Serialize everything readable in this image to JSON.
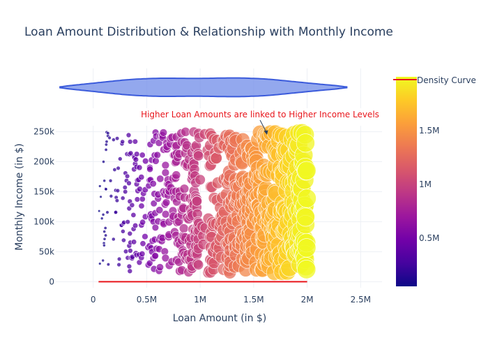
{
  "chart_data": {
    "type": "scatter",
    "title": "Loan Amount Distribution & Relationship with Monthly Income",
    "xlabel": "Loan Amount (in $)",
    "ylabel": "Monthly Income (in $)",
    "xlim": [
      -350000,
      2700000
    ],
    "ylim": [
      -10000,
      260000
    ],
    "x_ticks": [
      {
        "value": 0,
        "label": "0"
      },
      {
        "value": 500000,
        "label": "0.5M"
      },
      {
        "value": 1000000,
        "label": "1M"
      },
      {
        "value": 1500000,
        "label": "1.5M"
      },
      {
        "value": 2000000,
        "label": "2M"
      },
      {
        "value": 2500000,
        "label": "2.5M"
      }
    ],
    "y_ticks": [
      {
        "value": 0,
        "label": "0"
      },
      {
        "value": 50000,
        "label": "50k"
      },
      {
        "value": 100000,
        "label": "100k"
      },
      {
        "value": 150000,
        "label": "150k"
      },
      {
        "value": 200000,
        "label": "200k"
      },
      {
        "value": 250000,
        "label": "250k"
      }
    ],
    "grid": true,
    "colorbar": {
      "min": 50000,
      "max": 2000000,
      "ticks": [
        {
          "value": 500000,
          "label": "0.5M"
        },
        {
          "value": 1000000,
          "label": "1M"
        },
        {
          "value": 1500000,
          "label": "1.5M"
        }
      ],
      "colors": [
        "#0d0887",
        "#46039f",
        "#7201a8",
        "#9c179e",
        "#bd3786",
        "#d8576b",
        "#ed7953",
        "#fb9f3a",
        "#fdca26",
        "#f0f921"
      ]
    },
    "points_sample": [
      {
        "x": 120000,
        "y": 220000
      },
      {
        "x": 300000,
        "y": 150000
      },
      {
        "x": 450000,
        "y": 40000
      },
      {
        "x": 650000,
        "y": 240000
      },
      {
        "x": 800000,
        "y": 100000
      },
      {
        "x": 1000000,
        "y": 170000
      },
      {
        "x": 1150000,
        "y": 60000
      },
      {
        "x": 1300000,
        "y": 210000
      },
      {
        "x": 1450000,
        "y": 120000
      },
      {
        "x": 1600000,
        "y": 30000
      },
      {
        "x": 1750000,
        "y": 190000
      },
      {
        "x": 1900000,
        "y": 80000
      },
      {
        "x": 1980000,
        "y": 245000
      }
    ],
    "point_field": {
      "x_range": [
        50000,
        2000000
      ],
      "y_range": [
        15000,
        250000
      ],
      "count": 750,
      "gap_x_range": [
        1000000,
        1080000
      ]
    },
    "violin": {
      "x_range": [
        -310000,
        2370000
      ],
      "bulges": [
        {
          "center": 450000,
          "height": 1.0
        },
        {
          "center": 1500000,
          "height": 1.0
        }
      ],
      "fill": "#6f8be8",
      "line": "#3b5bdb"
    },
    "density_curve": {
      "name": "Density Curve",
      "color": "#e8151b",
      "x_range": [
        50000,
        2000000
      ],
      "y_value": 0
    },
    "annotation": {
      "text": "Higher Loan Amounts are linked to Higher Income Levels",
      "x": 1600000,
      "y": 250000,
      "color": "#e8151b"
    }
  }
}
